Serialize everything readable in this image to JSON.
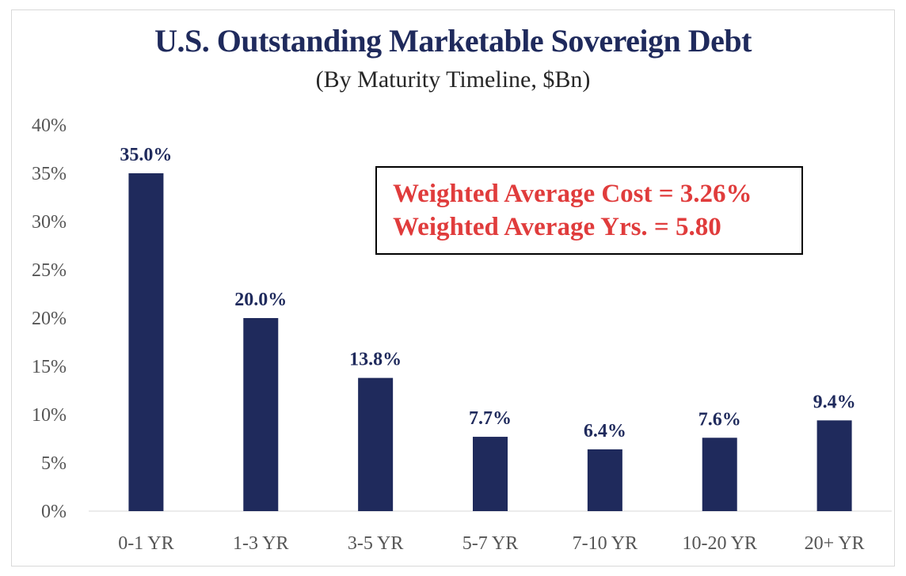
{
  "chart_data": {
    "type": "bar",
    "title": "U.S. Outstanding Marketable Sovereign Debt",
    "subtitle": "(By Maturity Timeline, $Bn)",
    "categories": [
      "0-1 YR",
      "1-3 YR",
      "3-5 YR",
      "5-7 YR",
      "7-10 YR",
      "10-20 YR",
      "20+ YR"
    ],
    "values": [
      35.0,
      20.0,
      13.8,
      7.7,
      6.4,
      7.6,
      9.4
    ],
    "data_labels": [
      "35.0%",
      "20.0%",
      "13.8%",
      "7.7%",
      "6.4%",
      "7.6%",
      "9.4%"
    ],
    "y_ticks": [
      "0%",
      "5%",
      "10%",
      "15%",
      "20%",
      "25%",
      "30%",
      "35%",
      "40%"
    ],
    "ylim": [
      0,
      40
    ],
    "grid": false,
    "bar_color": "#1f2a5c",
    "annotation": {
      "line1": "Weighted Average Cost = 3.26%",
      "line2": "Weighted Average Yrs. = 5.80",
      "color": "#e03c3c"
    }
  }
}
